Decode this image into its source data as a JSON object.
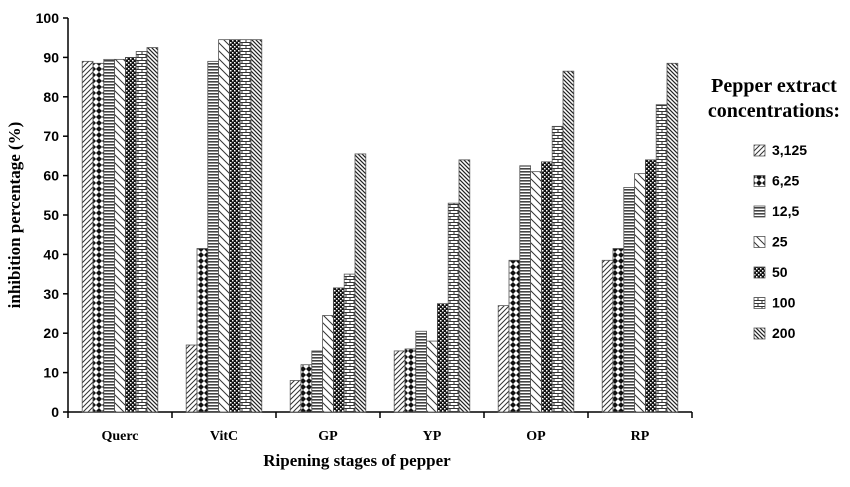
{
  "chart_data": {
    "type": "bar",
    "xlabel": "Ripening stages of pepper",
    "ylabel": "inhibition percentage (%)",
    "ylim": [
      0,
      100
    ],
    "yticks": [
      "0",
      "10",
      "20",
      "30",
      "40",
      "50",
      "60",
      "70",
      "80",
      "90",
      "100"
    ],
    "categories": [
      "Querc",
      "VitC",
      "GP",
      "YP",
      "OP",
      "RP"
    ],
    "legend_title": [
      "Pepper extract",
      "concentrations:"
    ],
    "legend_position": "right",
    "grid": false,
    "series": [
      {
        "name": "3,125",
        "pattern": "diag-fine-right",
        "values": [
          89.0,
          17.0,
          8.0,
          15.5,
          27.0,
          38.5
        ]
      },
      {
        "name": "6,25",
        "pattern": "diamond-check",
        "values": [
          88.5,
          41.5,
          12.0,
          16.0,
          38.5,
          41.5
        ]
      },
      {
        "name": "12,5",
        "pattern": "horizontal-lines",
        "values": [
          89.5,
          89.0,
          15.5,
          20.5,
          62.5,
          57.0
        ]
      },
      {
        "name": "25",
        "pattern": "diag-wide-left",
        "values": [
          89.5,
          94.5,
          24.5,
          18.0,
          61.0,
          60.5
        ]
      },
      {
        "name": "50",
        "pattern": "dark-check",
        "values": [
          90.0,
          94.5,
          31.5,
          27.5,
          63.5,
          64.0
        ]
      },
      {
        "name": "100",
        "pattern": "brick",
        "values": [
          91.5,
          94.5,
          35.0,
          53.0,
          72.5,
          78.0
        ]
      },
      {
        "name": "200",
        "pattern": "diag-dense-left",
        "values": [
          92.5,
          94.5,
          65.5,
          64.0,
          86.5,
          88.5
        ]
      }
    ]
  }
}
